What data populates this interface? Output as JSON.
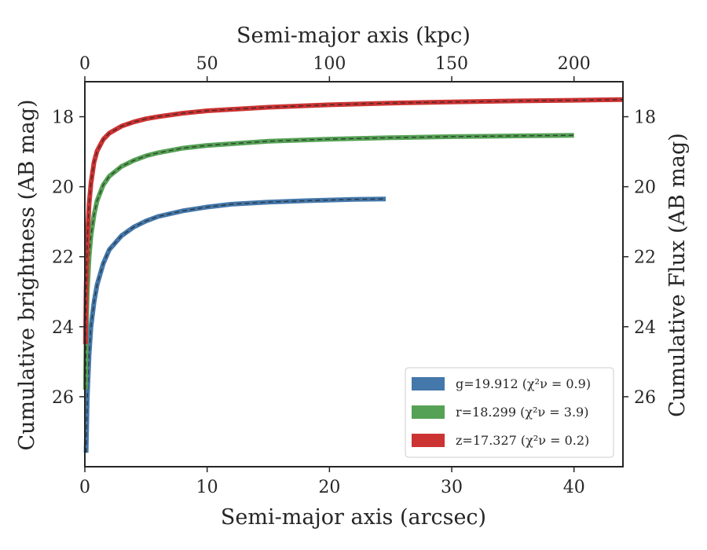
{
  "chart_data": {
    "type": "line",
    "xlabel": "Semi-major axis (arcsec)",
    "xlabel_top": "Semi-major axis (kpc)",
    "ylabel": "Cumulative brightness (AB mag)",
    "ylabel_right": "Cumulative Flux (AB mag)",
    "xlim": [
      0,
      44
    ],
    "ylim": [
      28.0,
      17.0
    ],
    "y_inverted": true,
    "top_xlim": [
      0,
      220
    ],
    "xticks": [
      "0",
      "10",
      "20",
      "30",
      "40"
    ],
    "top_xticks": [
      "0",
      "50",
      "100",
      "150",
      "200"
    ],
    "yticks": [
      "18",
      "20",
      "22",
      "24",
      "26"
    ],
    "grid": false,
    "legend_position": "lower-right",
    "series": [
      {
        "name": "g=19.912",
        "chi_label": "(χ²ν = 0.9)",
        "color": "#4477aa",
        "x": [
          0.1,
          0.2,
          0.35,
          0.5,
          0.75,
          1.0,
          1.5,
          2.0,
          3.0,
          4.0,
          5.0,
          6.0,
          8.0,
          10.0,
          12.0,
          15.0,
          18.0,
          20.0,
          22.0,
          24.6
        ],
        "y": [
          27.6,
          26.0,
          24.8,
          24.0,
          23.3,
          22.8,
          22.2,
          21.8,
          21.4,
          21.15,
          20.98,
          20.85,
          20.69,
          20.58,
          20.5,
          20.44,
          20.4,
          20.38,
          20.36,
          20.35
        ]
      },
      {
        "name": "r=18.299",
        "chi_label": "(χ²ν = 3.9)",
        "color": "#55a155",
        "x": [
          0.05,
          0.1,
          0.2,
          0.35,
          0.5,
          0.75,
          1.0,
          1.5,
          2.0,
          3.0,
          4.0,
          5.0,
          6.0,
          8.0,
          10.0,
          15.0,
          20.0,
          25.0,
          30.0,
          35.0,
          40.0
        ],
        "y": [
          25.8,
          24.3,
          23.0,
          22.0,
          21.4,
          20.8,
          20.4,
          19.95,
          19.7,
          19.42,
          19.25,
          19.12,
          19.03,
          18.9,
          18.82,
          18.7,
          18.64,
          18.6,
          18.57,
          18.55,
          18.53
        ]
      },
      {
        "name": "z=17.327",
        "chi_label": "(χ²ν = 0.2)",
        "color": "#cc3333",
        "x": [
          0.05,
          0.1,
          0.2,
          0.35,
          0.5,
          0.75,
          1.0,
          1.5,
          2.0,
          3.0,
          4.0,
          5.0,
          6.0,
          8.0,
          10.0,
          15.0,
          20.0,
          25.0,
          30.0,
          35.0,
          40.0,
          44.0
        ],
        "y": [
          24.5,
          23.0,
          21.5,
          20.5,
          19.9,
          19.3,
          18.98,
          18.65,
          18.47,
          18.27,
          18.15,
          18.06,
          18.0,
          17.9,
          17.83,
          17.73,
          17.66,
          17.61,
          17.58,
          17.55,
          17.53,
          17.51
        ]
      }
    ]
  }
}
